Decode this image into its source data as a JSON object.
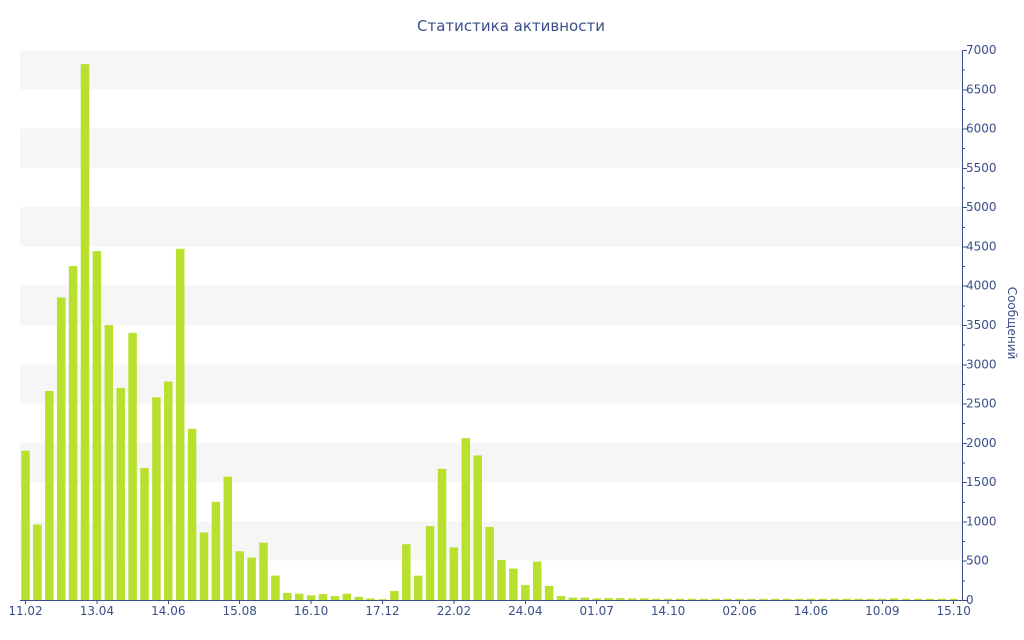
{
  "chart_data": {
    "type": "bar",
    "title": "Статистика активности",
    "xlabel": "",
    "ylabel": "Сообщений",
    "ylim": [
      0,
      7000
    ],
    "y_ticks": [
      0,
      500,
      1000,
      1500,
      2000,
      2500,
      3000,
      3500,
      4000,
      4500,
      5000,
      5500,
      6000,
      6500,
      7000
    ],
    "y_axis_position": "right",
    "grid": "alternating horizontal bands",
    "bar_color": "#b8e02e",
    "x_tick_labels": [
      {
        "index": 0,
        "label": "11.02"
      },
      {
        "index": 6,
        "label": "13.04"
      },
      {
        "index": 12,
        "label": "14.06"
      },
      {
        "index": 18,
        "label": "15.08"
      },
      {
        "index": 24,
        "label": "16.10"
      },
      {
        "index": 30,
        "label": "17.12"
      },
      {
        "index": 36,
        "label": "22.02"
      },
      {
        "index": 42,
        "label": "24.04"
      },
      {
        "index": 48,
        "label": "01.07"
      },
      {
        "index": 54,
        "label": "14.10"
      },
      {
        "index": 60,
        "label": "02.06"
      },
      {
        "index": 66,
        "label": "14.06"
      },
      {
        "index": 72,
        "label": "10.09"
      },
      {
        "index": 78,
        "label": "15.10"
      }
    ],
    "values": [
      1900,
      960,
      2660,
      3850,
      4250,
      6820,
      4440,
      3500,
      2700,
      3400,
      1680,
      2580,
      2780,
      4470,
      2180,
      860,
      1250,
      1570,
      620,
      540,
      730,
      310,
      90,
      80,
      60,
      75,
      50,
      80,
      40,
      20,
      10,
      115,
      710,
      310,
      940,
      1670,
      670,
      2060,
      1840,
      930,
      510,
      400,
      190,
      490,
      180,
      50,
      30,
      30,
      20,
      25,
      25,
      20,
      20,
      15,
      15,
      15,
      15,
      15,
      15,
      15,
      15,
      15,
      15,
      15,
      15,
      15,
      15,
      15,
      15,
      15,
      15,
      15,
      15,
      20,
      15,
      15,
      15,
      15,
      15
    ]
  }
}
